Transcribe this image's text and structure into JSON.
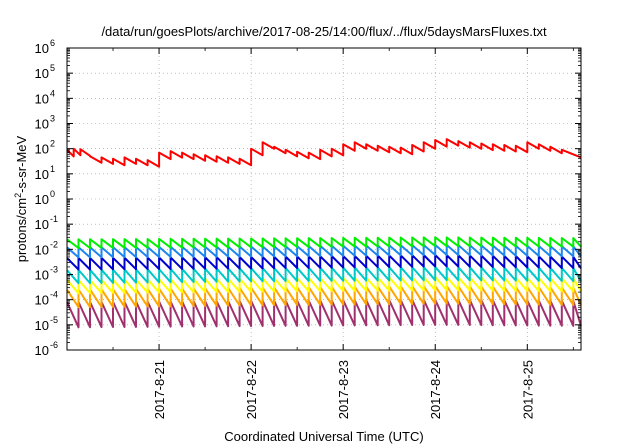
{
  "chart_data": {
    "type": "line",
    "title": "/data/run/goesPlots/archive/2017-08-25/14:00/flux/../flux/5daysMarsFluxes.txt",
    "ylabel_parts": [
      "protons/cm",
      "2",
      "-s-sr-MeV"
    ],
    "xlabel": "Coordinated Universal Time (UTC)",
    "y_scale": "log",
    "ylim_exponents": [
      -6,
      6
    ],
    "y_tick_base": "10",
    "y_tick_exponents": [
      "-6",
      "-5",
      "-4",
      "-3",
      "-2",
      "-1",
      "0",
      "1",
      "2",
      "3",
      "4",
      "5",
      "6"
    ],
    "x_unit": "day",
    "xlim": [
      "2017-08-20 00:00",
      "2017-08-25 14:00"
    ],
    "x_tick_labels": [
      "2017-8-21",
      "2017-8-22",
      "2017-8-23",
      "2017-8-24",
      "2017-8-25"
    ],
    "x_ticks": [
      "2017-08-21",
      "2017-08-22",
      "2017-08-23",
      "2017-08-24",
      "2017-08-25"
    ],
    "grid": true,
    "series": [
      {
        "color": "#ff0000",
        "style": "sawtooth",
        "resets": [
          [
            "2017-08-20 00:00",
            90
          ],
          [
            "2017-08-20 01:45",
            100
          ],
          [
            "2017-08-20 03:30",
            95
          ],
          [
            "2017-08-20 06:00",
            50
          ],
          [
            "2017-08-20 09:00",
            45
          ],
          [
            "2017-08-20 12:00",
            40
          ],
          [
            "2017-08-20 15:00",
            45
          ],
          [
            "2017-08-20 18:00",
            40
          ],
          [
            "2017-08-20 21:00",
            35
          ],
          [
            "2017-08-21 00:00",
            70
          ],
          [
            "2017-08-21 03:00",
            80
          ],
          [
            "2017-08-21 06:00",
            70
          ],
          [
            "2017-08-21 09:00",
            60
          ],
          [
            "2017-08-21 12:00",
            55
          ],
          [
            "2017-08-21 15:00",
            50
          ],
          [
            "2017-08-21 18:00",
            45
          ],
          [
            "2017-08-21 21:00",
            40
          ],
          [
            "2017-08-22 00:00",
            100
          ],
          [
            "2017-08-22 03:00",
            180
          ],
          [
            "2017-08-22 06:00",
            120
          ],
          [
            "2017-08-22 09:00",
            90
          ],
          [
            "2017-08-22 12:00",
            75
          ],
          [
            "2017-08-22 15:00",
            70
          ],
          [
            "2017-08-22 18:00",
            90
          ],
          [
            "2017-08-22 21:00",
            100
          ],
          [
            "2017-08-23 00:00",
            150
          ],
          [
            "2017-08-23 03:00",
            180
          ],
          [
            "2017-08-23 06:00",
            150
          ],
          [
            "2017-08-23 09:00",
            130
          ],
          [
            "2017-08-23 12:00",
            120
          ],
          [
            "2017-08-23 15:00",
            110
          ],
          [
            "2017-08-23 18:00",
            140
          ],
          [
            "2017-08-23 21:00",
            180
          ],
          [
            "2017-08-24 00:00",
            220
          ],
          [
            "2017-08-24 03:00",
            240
          ],
          [
            "2017-08-24 06:00",
            200
          ],
          [
            "2017-08-24 09:00",
            180
          ],
          [
            "2017-08-24 12:00",
            160
          ],
          [
            "2017-08-24 15:00",
            150
          ],
          [
            "2017-08-24 18:00",
            140
          ],
          [
            "2017-08-24 21:00",
            130
          ],
          [
            "2017-08-25 00:00",
            180
          ],
          [
            "2017-08-25 03:00",
            150
          ],
          [
            "2017-08-25 06:00",
            120
          ],
          [
            "2017-08-25 09:00",
            90
          ]
        ],
        "drop_factor": 0.55,
        "end": [
          "2017-08-25 14:00",
          45
        ]
      },
      {
        "color": "#00ee00",
        "style": "sawtooth",
        "period_hours": 3,
        "peaks": [
          [
            "2017-08-20 00:00",
            0.025
          ],
          [
            "2017-08-22 00:00",
            0.027
          ],
          [
            "2017-08-24 00:00",
            0.03
          ],
          [
            "2017-08-25 14:00",
            0.028
          ]
        ],
        "drop_factor": 0.45
      },
      {
        "color": "#1c86ee",
        "style": "sawtooth",
        "period_hours": 3,
        "peaks": [
          [
            "2017-08-20 00:00",
            0.012
          ],
          [
            "2017-08-22 00:00",
            0.013
          ],
          [
            "2017-08-24 00:00",
            0.015
          ],
          [
            "2017-08-25 14:00",
            0.013
          ]
        ],
        "drop_factor": 0.4
      },
      {
        "color": "#0000cd",
        "style": "sawtooth",
        "period_hours": 3,
        "peaks": [
          [
            "2017-08-20 00:00",
            0.0045
          ],
          [
            "2017-08-22 00:00",
            0.005
          ],
          [
            "2017-08-24 00:00",
            0.006
          ],
          [
            "2017-08-25 14:00",
            0.005
          ]
        ],
        "drop_factor": 0.35
      },
      {
        "color": "#00c8c8",
        "style": "sawtooth",
        "period_hours": 3,
        "peaks": [
          [
            "2017-08-20 00:00",
            0.0015
          ],
          [
            "2017-08-22 00:00",
            0.0018
          ],
          [
            "2017-08-24 00:00",
            0.002
          ],
          [
            "2017-08-25 14:00",
            0.0018
          ]
        ],
        "drop_factor": 0.3
      },
      {
        "color": "#ffff00",
        "style": "sawtooth",
        "period_hours": 3,
        "peaks": [
          [
            "2017-08-20 00:00",
            0.0006
          ],
          [
            "2017-08-22 00:00",
            0.0007
          ],
          [
            "2017-08-24 00:00",
            0.0008
          ],
          [
            "2017-08-25 14:00",
            0.0007
          ]
        ],
        "drop_factor": 0.3
      },
      {
        "color": "#ffa500",
        "style": "sawtooth",
        "period_hours": 3,
        "peaks": [
          [
            "2017-08-20 00:00",
            0.00025
          ],
          [
            "2017-08-22 00:00",
            0.0003
          ],
          [
            "2017-08-24 00:00",
            0.00035
          ],
          [
            "2017-08-25 14:00",
            0.0003
          ]
        ],
        "drop_factor": 0.2
      },
      {
        "color": "#a0306e",
        "style": "sawtooth",
        "period_hours": 3,
        "peaks": [
          [
            "2017-08-20 00:00",
            8e-05
          ],
          [
            "2017-08-22 00:00",
            9e-05
          ],
          [
            "2017-08-24 00:00",
            0.0001
          ],
          [
            "2017-08-25 14:00",
            9e-05
          ]
        ],
        "drop_factor": 0.1
      }
    ]
  }
}
